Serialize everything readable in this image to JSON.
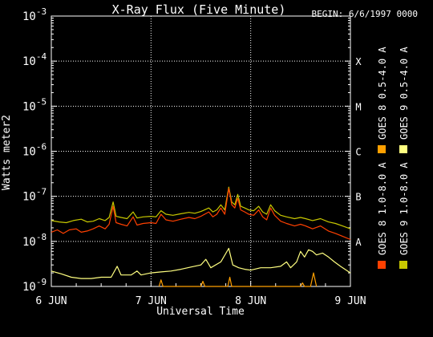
{
  "header": {
    "begin": "BEGIN: 6/6/1997 0000"
  },
  "chart_data": {
    "type": "line",
    "title": "X-Ray Flux (Five Minute)",
    "xlabel": "Universal Time",
    "ylabel": "Watts meter2",
    "x_unit": "days since 1997-06-06 00:00 UT",
    "xlim": [
      0,
      3
    ],
    "ylim": [
      1e-09,
      0.001
    ],
    "yscale": "log",
    "x_ticks": [
      {
        "value": 0,
        "label": "6 JUN"
      },
      {
        "value": 1,
        "label": "7 JUN"
      },
      {
        "value": 2,
        "label": "8 JUN"
      },
      {
        "value": 3,
        "label": "9 JUN"
      }
    ],
    "y_ticks": [
      {
        "value": 0.001,
        "base": "10",
        "exp": "-3"
      },
      {
        "value": 0.0001,
        "base": "10",
        "exp": "-4"
      },
      {
        "value": 1e-05,
        "base": "10",
        "exp": "-5"
      },
      {
        "value": 1e-06,
        "base": "10",
        "exp": "-6"
      },
      {
        "value": 1e-07,
        "base": "10",
        "exp": "-7"
      },
      {
        "value": 1e-08,
        "base": "10",
        "exp": "-8"
      },
      {
        "value": 1e-09,
        "base": "10",
        "exp": "-9"
      }
    ],
    "flare_classes": [
      {
        "label": "X",
        "value": 0.0001
      },
      {
        "label": "M",
        "value": 1e-05
      },
      {
        "label": "C",
        "value": 1e-06
      },
      {
        "label": "B",
        "value": 1e-07
      },
      {
        "label": "A",
        "value": 1e-08
      }
    ],
    "grid": "dotted horizontal lines at A-X class levels, dotted vertical lines at day boundaries",
    "legend_position": "right, rotated vertical",
    "series": [
      {
        "name": "GOES 9 1.0-8.0 A",
        "color": "#c8c800",
        "points": [
          [
            0,
            2.9e-08
          ],
          [
            0.08,
            2.7e-08
          ],
          [
            0.15,
            2.6e-08
          ],
          [
            0.22,
            2.9e-08
          ],
          [
            0.3,
            3.1e-08
          ],
          [
            0.36,
            2.7e-08
          ],
          [
            0.42,
            2.8e-08
          ],
          [
            0.48,
            3.2e-08
          ],
          [
            0.54,
            2.9e-08
          ],
          [
            0.58,
            3.4e-08
          ],
          [
            0.62,
            7.5e-08
          ],
          [
            0.65,
            3.6e-08
          ],
          [
            0.7,
            3.4e-08
          ],
          [
            0.76,
            3.2e-08
          ],
          [
            0.82,
            4.5e-08
          ],
          [
            0.86,
            3.3e-08
          ],
          [
            0.92,
            3.5e-08
          ],
          [
            1.0,
            3.6e-08
          ],
          [
            1.05,
            3.5e-08
          ],
          [
            1.1,
            4.8e-08
          ],
          [
            1.15,
            4e-08
          ],
          [
            1.22,
            3.8e-08
          ],
          [
            1.3,
            4.1e-08
          ],
          [
            1.38,
            4.4e-08
          ],
          [
            1.44,
            4.2e-08
          ],
          [
            1.5,
            4.6e-08
          ],
          [
            1.58,
            5.5e-08
          ],
          [
            1.62,
            4.5e-08
          ],
          [
            1.66,
            5e-08
          ],
          [
            1.7,
            6.5e-08
          ],
          [
            1.74,
            5e-08
          ],
          [
            1.78,
            1.6e-07
          ],
          [
            1.81,
            7.5e-08
          ],
          [
            1.84,
            6.5e-08
          ],
          [
            1.87,
            1.1e-07
          ],
          [
            1.9,
            6e-08
          ],
          [
            1.94,
            5.5e-08
          ],
          [
            1.98,
            5e-08
          ],
          [
            2.03,
            4.8e-08
          ],
          [
            2.08,
            6e-08
          ],
          [
            2.12,
            4.5e-08
          ],
          [
            2.16,
            4e-08
          ],
          [
            2.2,
            6.5e-08
          ],
          [
            2.24,
            4.8e-08
          ],
          [
            2.3,
            3.8e-08
          ],
          [
            2.36,
            3.5e-08
          ],
          [
            2.44,
            3.2e-08
          ],
          [
            2.5,
            3.4e-08
          ],
          [
            2.55,
            3.2e-08
          ],
          [
            2.62,
            2.9e-08
          ],
          [
            2.7,
            3.2e-08
          ],
          [
            2.78,
            2.7e-08
          ],
          [
            2.85,
            2.5e-08
          ],
          [
            2.92,
            2.2e-08
          ],
          [
            3.0,
            1.9e-08
          ]
        ]
      },
      {
        "name": "GOES 8 1.0-8.0 A",
        "color": "#ff4000",
        "points": [
          [
            0,
            1.6e-08
          ],
          [
            0.06,
            1.8e-08
          ],
          [
            0.12,
            1.5e-08
          ],
          [
            0.18,
            1.8e-08
          ],
          [
            0.25,
            1.9e-08
          ],
          [
            0.3,
            1.6e-08
          ],
          [
            0.36,
            1.7e-08
          ],
          [
            0.42,
            1.9e-08
          ],
          [
            0.48,
            2.2e-08
          ],
          [
            0.54,
            1.9e-08
          ],
          [
            0.58,
            2.4e-08
          ],
          [
            0.62,
            6e-08
          ],
          [
            0.65,
            2.6e-08
          ],
          [
            0.7,
            2.4e-08
          ],
          [
            0.76,
            2.2e-08
          ],
          [
            0.82,
            3.5e-08
          ],
          [
            0.86,
            2.3e-08
          ],
          [
            0.92,
            2.5e-08
          ],
          [
            1.0,
            2.6e-08
          ],
          [
            1.05,
            2.5e-08
          ],
          [
            1.1,
            4e-08
          ],
          [
            1.15,
            3e-08
          ],
          [
            1.22,
            2.8e-08
          ],
          [
            1.3,
            3.1e-08
          ],
          [
            1.38,
            3.4e-08
          ],
          [
            1.44,
            3.2e-08
          ],
          [
            1.5,
            3.6e-08
          ],
          [
            1.58,
            4.5e-08
          ],
          [
            1.62,
            3.5e-08
          ],
          [
            1.66,
            4e-08
          ],
          [
            1.7,
            5.5e-08
          ],
          [
            1.74,
            4e-08
          ],
          [
            1.78,
            1.5e-07
          ],
          [
            1.81,
            6.5e-08
          ],
          [
            1.84,
            5.5e-08
          ],
          [
            1.87,
            9e-08
          ],
          [
            1.9,
            5e-08
          ],
          [
            1.94,
            4.5e-08
          ],
          [
            1.98,
            4e-08
          ],
          [
            2.03,
            3.8e-08
          ],
          [
            2.08,
            5e-08
          ],
          [
            2.12,
            3.5e-08
          ],
          [
            2.16,
            3e-08
          ],
          [
            2.2,
            5.5e-08
          ],
          [
            2.24,
            3.8e-08
          ],
          [
            2.3,
            2.8e-08
          ],
          [
            2.36,
            2.5e-08
          ],
          [
            2.44,
            2.2e-08
          ],
          [
            2.5,
            2.4e-08
          ],
          [
            2.55,
            2.2e-08
          ],
          [
            2.62,
            1.9e-08
          ],
          [
            2.7,
            2.2e-08
          ],
          [
            2.78,
            1.7e-08
          ],
          [
            2.85,
            1.5e-08
          ],
          [
            2.92,
            1.3e-08
          ],
          [
            3.0,
            1.1e-08
          ]
        ]
      },
      {
        "name": "GOES 9 0.5-4.0 A",
        "color": "#ffff80",
        "points": [
          [
            0,
            2.2e-09
          ],
          [
            0.1,
            1.9e-09
          ],
          [
            0.2,
            1.6e-09
          ],
          [
            0.3,
            1.5e-09
          ],
          [
            0.4,
            1.5e-09
          ],
          [
            0.5,
            1.6e-09
          ],
          [
            0.6,
            1.6e-09
          ],
          [
            0.66,
            2.8e-09
          ],
          [
            0.7,
            1.8e-09
          ],
          [
            0.8,
            1.8e-09
          ],
          [
            0.86,
            2.2e-09
          ],
          [
            0.9,
            1.8e-09
          ],
          [
            1.0,
            2e-09
          ],
          [
            1.1,
            2.1e-09
          ],
          [
            1.2,
            2.2e-09
          ],
          [
            1.3,
            2.4e-09
          ],
          [
            1.4,
            2.7e-09
          ],
          [
            1.5,
            3e-09
          ],
          [
            1.55,
            4e-09
          ],
          [
            1.6,
            2.6e-09
          ],
          [
            1.7,
            3.5e-09
          ],
          [
            1.78,
            7e-09
          ],
          [
            1.82,
            3e-09
          ],
          [
            1.88,
            2.6e-09
          ],
          [
            1.94,
            2.4e-09
          ],
          [
            2.0,
            2.3e-09
          ],
          [
            2.1,
            2.6e-09
          ],
          [
            2.2,
            2.6e-09
          ],
          [
            2.3,
            2.8e-09
          ],
          [
            2.36,
            3.5e-09
          ],
          [
            2.4,
            2.6e-09
          ],
          [
            2.46,
            3.5e-09
          ],
          [
            2.5,
            6e-09
          ],
          [
            2.54,
            4.5e-09
          ],
          [
            2.58,
            6.5e-09
          ],
          [
            2.62,
            6e-09
          ],
          [
            2.66,
            5e-09
          ],
          [
            2.72,
            5.5e-09
          ],
          [
            2.78,
            4.5e-09
          ],
          [
            2.84,
            3.5e-09
          ],
          [
            2.9,
            2.8e-09
          ],
          [
            3.0,
            2e-09
          ]
        ]
      },
      {
        "name": "GOES 8 0.5-4.0 A",
        "color": "#ffa000",
        "points": [
          [
            1.08,
            1e-09
          ],
          [
            1.1,
            1.4e-09
          ],
          [
            1.12,
            1e-09
          ],
          [
            1.5,
            1e-09
          ],
          [
            1.52,
            1.3e-09
          ],
          [
            1.54,
            1e-09
          ],
          [
            1.77,
            1e-09
          ],
          [
            1.79,
            1.6e-09
          ],
          [
            1.81,
            1e-09
          ],
          [
            2.5,
            1e-09
          ],
          [
            2.52,
            1.2e-09
          ],
          [
            2.54,
            1e-09
          ],
          [
            2.6,
            1e-09
          ],
          [
            2.63,
            2e-09
          ],
          [
            2.66,
            1e-09
          ]
        ]
      }
    ]
  }
}
